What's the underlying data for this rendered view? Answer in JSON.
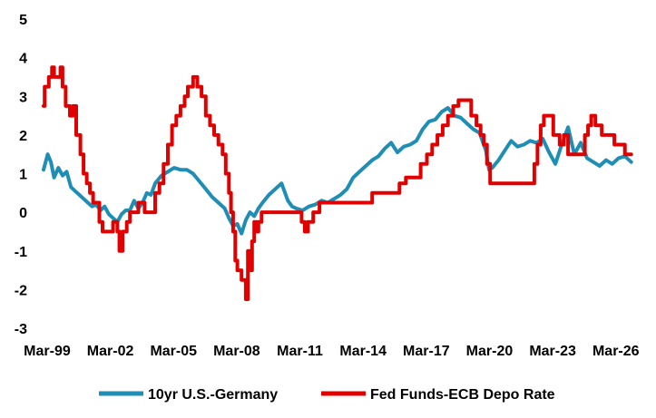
{
  "chart_data": {
    "type": "line",
    "title": "",
    "xlabel": "",
    "ylabel": "",
    "xlim": [
      1999.0,
      2027.3
    ],
    "ylim": [
      -3,
      5
    ],
    "yticks": [
      -3,
      -2,
      -1,
      0,
      1,
      2,
      3,
      4,
      5
    ],
    "ytick_labels": [
      "-3",
      "-2",
      "-1",
      "0",
      "1",
      "2",
      "3",
      "4",
      "5"
    ],
    "xticks": [
      1999.17,
      2002.17,
      2005.17,
      2008.17,
      2011.17,
      2014.17,
      2017.17,
      2020.17,
      2023.17,
      2026.17
    ],
    "xtick_labels": [
      "Mar-99",
      "Mar-02",
      "Mar-05",
      "Mar-08",
      "Mar-11",
      "Mar-14",
      "Mar-17",
      "Mar-20",
      "Mar-23",
      "Mar-26"
    ],
    "grid": false,
    "legend_position": "bottom",
    "series": [
      {
        "name": "10yr U.S.-Germany",
        "color": "#1f8eb5",
        "step": false,
        "x": [
          1999.0,
          1999.2,
          1999.35,
          1999.5,
          1999.7,
          1999.9,
          2000.1,
          2000.3,
          2000.5,
          2000.7,
          2000.9,
          2001.1,
          2001.3,
          2001.5,
          2001.7,
          2001.9,
          2002.1,
          2002.3,
          2002.5,
          2002.7,
          2002.9,
          2003.1,
          2003.3,
          2003.5,
          2003.7,
          2003.9,
          2004.1,
          2004.3,
          2004.6,
          2004.9,
          2005.2,
          2005.5,
          2005.8,
          2006.1,
          2006.4,
          2006.7,
          2007.0,
          2007.3,
          2007.6,
          2007.8,
          2008.0,
          2008.2,
          2008.4,
          2008.6,
          2008.8,
          2009.0,
          2009.2,
          2009.4,
          2009.7,
          2010.0,
          2010.3,
          2010.6,
          2010.8,
          2011.0,
          2011.3,
          2011.6,
          2011.9,
          2012.2,
          2012.5,
          2012.8,
          2013.1,
          2013.4,
          2013.7,
          2014.0,
          2014.3,
          2014.6,
          2014.9,
          2015.2,
          2015.5,
          2015.8,
          2016.1,
          2016.4,
          2016.7,
          2017.0,
          2017.3,
          2017.6,
          2017.9,
          2018.2,
          2018.5,
          2018.8,
          2019.1,
          2019.4,
          2019.7,
          2020.0,
          2020.15,
          2020.3,
          2020.6,
          2020.9,
          2021.2,
          2021.5,
          2021.8,
          2022.1,
          2022.4,
          2022.7,
          2023.0,
          2023.3,
          2023.6,
          2023.9,
          2024.2,
          2024.5,
          2024.8,
          2025.1,
          2025.4,
          2025.7,
          2026.0,
          2026.3,
          2026.6,
          2026.9
        ],
        "y": [
          1.1,
          1.5,
          1.3,
          0.9,
          1.15,
          0.95,
          1.05,
          0.65,
          0.55,
          0.45,
          0.35,
          0.25,
          0.15,
          0.2,
          0.05,
          0.15,
          -0.05,
          -0.15,
          -0.25,
          -0.05,
          0.05,
          0.05,
          0.3,
          0.1,
          0.25,
          0.5,
          0.45,
          0.75,
          0.95,
          1.05,
          1.15,
          1.1,
          1.1,
          1.0,
          0.8,
          0.6,
          0.4,
          0.25,
          0.1,
          -0.15,
          -0.35,
          -0.3,
          -0.55,
          -0.2,
          0.0,
          -0.1,
          0.1,
          0.25,
          0.45,
          0.6,
          0.75,
          0.3,
          0.15,
          0.1,
          0.05,
          0.15,
          0.2,
          0.3,
          0.25,
          0.35,
          0.45,
          0.6,
          0.9,
          1.05,
          1.2,
          1.35,
          1.45,
          1.65,
          1.8,
          1.55,
          1.7,
          1.75,
          1.85,
          2.15,
          2.35,
          2.4,
          2.6,
          2.7,
          2.5,
          2.45,
          2.3,
          2.15,
          2.05,
          1.6,
          1.1,
          1.15,
          1.35,
          1.6,
          1.85,
          1.7,
          1.75,
          1.85,
          1.8,
          1.9,
          1.55,
          1.25,
          1.75,
          2.2,
          1.5,
          1.8,
          1.4,
          1.3,
          1.2,
          1.35,
          1.25,
          1.4,
          1.45,
          1.3
        ]
      },
      {
        "name": "Fed Funds-ECB Depo Rate",
        "color": "#e00000",
        "step": true,
        "x": [
          1999.0,
          1999.05,
          1999.25,
          1999.4,
          1999.5,
          1999.8,
          1999.9,
          2000.05,
          2000.25,
          2000.4,
          2000.55,
          2000.75,
          2000.9,
          2001.05,
          2001.2,
          2001.35,
          2001.5,
          2001.65,
          2001.8,
          2001.9,
          2002.3,
          2002.5,
          2002.6,
          2002.75,
          2002.95,
          2003.1,
          2003.3,
          2003.5,
          2003.8,
          2004.0,
          2004.3,
          2004.5,
          2004.7,
          2004.9,
          2005.1,
          2005.3,
          2005.5,
          2005.7,
          2005.85,
          2006.1,
          2006.3,
          2006.5,
          2006.7,
          2006.9,
          2007.1,
          2007.3,
          2007.5,
          2007.65,
          2007.8,
          2007.9,
          2008.0,
          2008.1,
          2008.2,
          2008.4,
          2008.6,
          2008.7,
          2008.8,
          2008.9,
          2009.0,
          2009.1,
          2009.2,
          2009.35,
          2009.5,
          2011.25,
          2011.4,
          2011.55,
          2011.8,
          2012.1,
          2012.35,
          2012.5,
          2014.6,
          2014.9,
          2015.9,
          2016.2,
          2016.9,
          2017.2,
          2017.45,
          2017.7,
          2017.95,
          2018.2,
          2018.45,
          2018.7,
          2018.9,
          2019.3,
          2019.55,
          2019.75,
          2019.9,
          2020.05,
          2020.2,
          2022.15,
          2022.3,
          2022.45,
          2022.6,
          2022.75,
          2022.9,
          2023.2,
          2023.5,
          2023.7,
          2023.9,
          2024.2,
          2024.5,
          2024.7,
          2024.85,
          2025.0,
          2025.2,
          2025.5,
          2026.1,
          2026.4,
          2026.6,
          2026.8,
          2026.9
        ],
        "y": [
          2.75,
          3.25,
          3.5,
          3.75,
          3.5,
          3.75,
          3.25,
          2.75,
          2.5,
          2.75,
          2.0,
          1.5,
          1.0,
          0.75,
          0.5,
          0.25,
          0.25,
          -0.25,
          -0.5,
          -0.5,
          -0.25,
          -0.5,
          -1.0,
          -0.5,
          -0.25,
          0.0,
          0.0,
          0.25,
          0.0,
          0.0,
          0.5,
          0.75,
          1.25,
          1.75,
          2.25,
          2.5,
          2.75,
          3.0,
          3.25,
          3.5,
          3.25,
          3.0,
          2.5,
          2.25,
          2.0,
          1.75,
          1.5,
          1.0,
          0.5,
          0.0,
          -0.5,
          -1.25,
          -1.5,
          -1.75,
          -2.25,
          -1.0,
          -1.5,
          -0.75,
          -0.25,
          -0.5,
          -0.25,
          0.0,
          0.0,
          -0.25,
          -0.5,
          -0.25,
          0.0,
          0.25,
          0.25,
          0.25,
          0.5,
          0.5,
          0.75,
          0.9,
          1.25,
          1.5,
          1.75,
          2.0,
          2.25,
          2.5,
          2.75,
          2.9,
          2.9,
          2.5,
          2.25,
          2.0,
          1.75,
          1.25,
          0.75,
          0.75,
          1.25,
          1.75,
          2.25,
          2.5,
          2.5,
          2.0,
          1.75,
          2.0,
          1.5,
          1.5,
          1.5,
          2.0,
          2.25,
          2.5,
          2.25,
          2.0,
          1.75,
          1.75,
          1.5,
          1.5,
          1.5
        ]
      }
    ]
  }
}
